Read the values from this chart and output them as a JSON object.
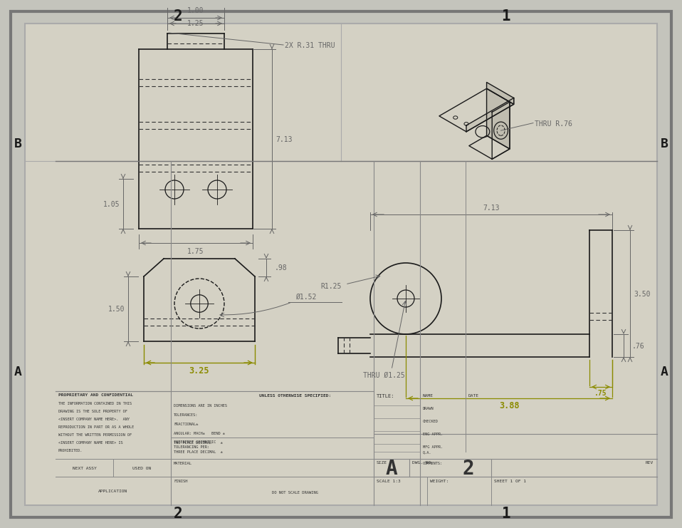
{
  "bg_outer": "#c4c4bc",
  "bg_inner": "#d4d1c4",
  "line_color": "#1a1a1a",
  "dim_color": "#666666",
  "yellow_dim_color": "#8B8B00",
  "border_line": "#888888",
  "dims_text": {
    "top_width": "1.00",
    "slot_width": "1.25",
    "total_height": "7.13",
    "hole_spacing": "1.75",
    "bottom_ext": "1.05",
    "bottom_width": "3.25",
    "bottom_depth": ".98",
    "bottom_height": "1.50",
    "hole_dia": "Ø1.52",
    "side_length": "7.13",
    "side_height": "3.50",
    "radius": "R1.25",
    "thru_dia": "THRU Ø1.25",
    "dim_076": ".76",
    "dim_075": ".75",
    "dim_388": "3.88",
    "thru_r031": "2X R.31 THRU",
    "thru_r076": "THRU R.76"
  },
  "border_labels_top": [
    [
      "2",
      240
    ],
    [
      "1",
      700
    ]
  ],
  "border_labels_bottom": [
    [
      "2",
      240
    ],
    [
      "1",
      700
    ]
  ],
  "border_labels_left": [
    [
      "B",
      530
    ],
    [
      "A",
      210
    ]
  ],
  "border_labels_right": [
    [
      "B",
      530
    ],
    [
      "A",
      210
    ]
  ],
  "title_block": {
    "size_label": "SIZE",
    "size_val": "A",
    "dwg_no_label": "DWG. NO.",
    "dwg_no_val": "2",
    "rev_label": "REV",
    "scale_label": "SCALE 1:3",
    "weight_label": "WEIGHT:",
    "sheet_label": "SHEET 1 OF 1",
    "title_label": "TITLE:",
    "unless_text": "UNLESS OTHERWISE SPECIFIED:",
    "dims_in_inches": "DIMENSIONS ARE IN INCHES",
    "tolerances": "TOLERANCES:",
    "fractional": "FRACTIONAL±",
    "angular": "ANGULAR: MACH±   BEND ±",
    "two_place": "TWO PLACE DECIMAL    ±",
    "three_place": "THREE PLACE DECIMAL  ±",
    "interp": "INTERPRET GEOMETRIC\nTOLERANCING PER:",
    "material": "MATERIAL",
    "finish": "FINISH",
    "name_col": "NAME",
    "date_col": "DATE",
    "drawn": "DRAWN",
    "checked": "CHECKED",
    "eng_appr": "ENG APPR.",
    "mfg_appr": "MFG APPR.",
    "qa": "Q.A.",
    "comments": "COMMENTS:",
    "prop_conf": "PROPRIETARY AND CONFIDENTIAL",
    "prop_text1": "THE INFORMATION CONTAINED IN THIS",
    "prop_text2": "DRAWING IS THE SOLE PROPERTY OF",
    "prop_text3": "<INSERT COMPANY NAME HERE>.  ANY",
    "prop_text4": "REPRODUCTION IN PART OR AS A WHOLE",
    "prop_text5": "WITHOUT THE WRITTEN PERMISSION OF",
    "prop_text6": "<INSERT COMPANY NAME HERE> IS",
    "prop_text7": "PROHIBITED.",
    "next_assy": "NEXT ASSY",
    "used_on": "USED ON",
    "application": "APPLICATION",
    "do_not_scale": "DO NOT SCALE DRAWING"
  }
}
